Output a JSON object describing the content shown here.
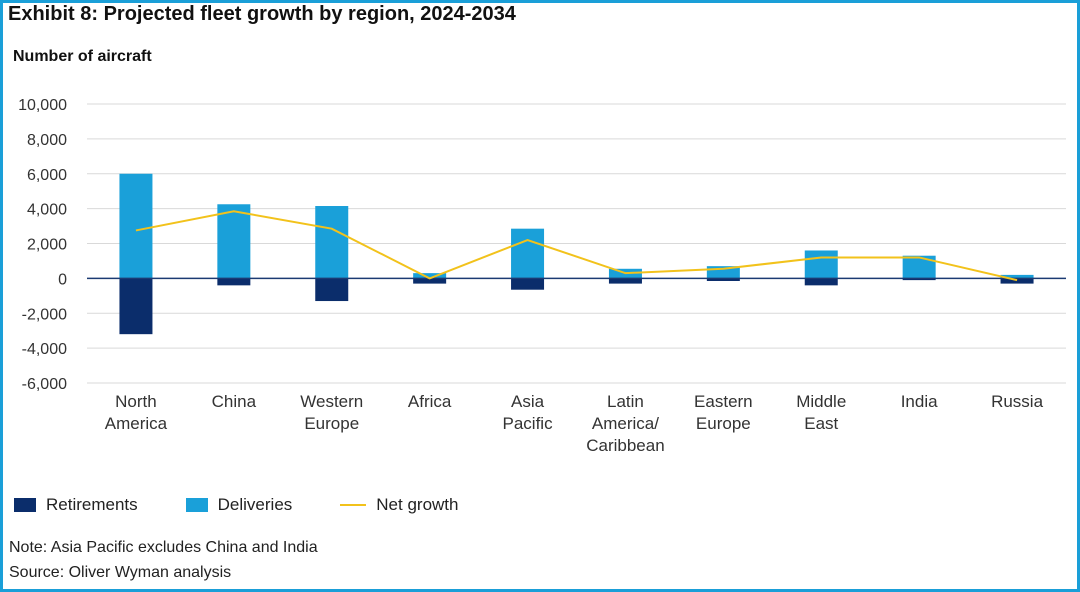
{
  "title": "Exhibit 8: Projected fleet growth by region, 2024-2034",
  "colors": {
    "retirements": "#0b2d6b",
    "deliveries": "#1aa0d9",
    "net_growth": "#f2c21b",
    "frame": "#1a9fd8",
    "grid": "#d9d9d9",
    "zero_line": "#1b3a72"
  },
  "legend": {
    "retirements": "Retirements",
    "deliveries": "Deliveries",
    "net_growth": "Net growth"
  },
  "note": "Note: Asia Pacific excludes China and India",
  "source": "Source: Oliver Wyman analysis",
  "chart_data": {
    "type": "bar",
    "title": "Exhibit 8: Projected fleet growth by region, 2024-2034",
    "ylabel": "Number of aircraft",
    "xlabel": "",
    "ylim": [
      -6000,
      10000
    ],
    "yticks": [
      10000,
      8000,
      6000,
      4000,
      2000,
      0,
      -2000,
      -4000,
      -6000
    ],
    "ytick_labels": [
      "10,000",
      "8,000",
      "6,000",
      "4,000",
      "2,000",
      "0",
      "-2,000",
      "-4,000",
      "-6,000"
    ],
    "grid": true,
    "legend_position": "bottom-left",
    "categories": [
      [
        "North",
        "America"
      ],
      [
        "China"
      ],
      [
        "Western",
        "Europe"
      ],
      [
        "Africa"
      ],
      [
        "Asia",
        "Pacific"
      ],
      [
        "Latin",
        "America/",
        "Caribbean"
      ],
      [
        "Eastern",
        "Europe"
      ],
      [
        "Middle",
        "East"
      ],
      [
        "India"
      ],
      [
        "Russia"
      ]
    ],
    "series": [
      {
        "name": "Retirements",
        "type": "bar",
        "values": [
          -3200,
          -400,
          -1300,
          -300,
          -650,
          -300,
          -150,
          -400,
          -100,
          -300
        ]
      },
      {
        "name": "Deliveries",
        "type": "bar",
        "values": [
          6000,
          4250,
          4150,
          300,
          2850,
          550,
          700,
          1600,
          1300,
          200
        ]
      },
      {
        "name": "Net growth",
        "type": "line",
        "values": [
          2750,
          3850,
          2850,
          0,
          2200,
          300,
          550,
          1200,
          1200,
          -100
        ]
      }
    ]
  }
}
